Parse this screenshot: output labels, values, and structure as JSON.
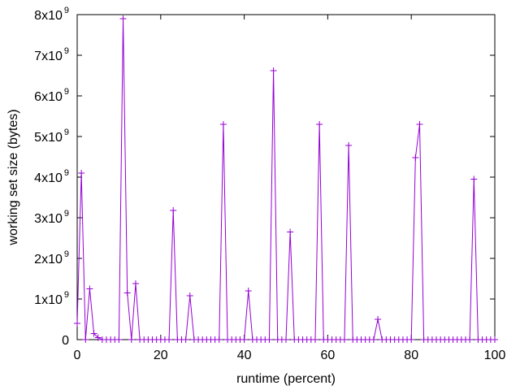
{
  "chart_data": {
    "type": "line",
    "title": "",
    "xlabel": "runtime (percent)",
    "ylabel": "working set size (bytes)",
    "xlim": [
      0,
      100
    ],
    "ylim": [
      0,
      8000000000
    ],
    "grid": false,
    "legend": "none",
    "line_color": "#9400d3",
    "marker": "+",
    "x_ticks": [
      0,
      20,
      40,
      60,
      80,
      100
    ],
    "x_tick_labels": [
      "0",
      "20",
      "40",
      "60",
      "80",
      "100"
    ],
    "y_ticks": [
      0,
      1000000000,
      2000000000,
      3000000000,
      4000000000,
      5000000000,
      6000000000,
      7000000000,
      8000000000
    ],
    "y_tick_labels": [
      {
        "mantissa": "0",
        "exponent": ""
      },
      {
        "mantissa": "1x10",
        "exponent": "9"
      },
      {
        "mantissa": "2x10",
        "exponent": "9"
      },
      {
        "mantissa": "3x10",
        "exponent": "9"
      },
      {
        "mantissa": "4x10",
        "exponent": "9"
      },
      {
        "mantissa": "5x10",
        "exponent": "9"
      },
      {
        "mantissa": "6x10",
        "exponent": "9"
      },
      {
        "mantissa": "7x10",
        "exponent": "9"
      },
      {
        "mantissa": "8x10",
        "exponent": "9"
      }
    ],
    "x": [
      0,
      1,
      2,
      3,
      4,
      5,
      6,
      7,
      8,
      9,
      10,
      11,
      12,
      13,
      14,
      15,
      16,
      17,
      18,
      19,
      20,
      21,
      22,
      23,
      24,
      25,
      26,
      27,
      28,
      29,
      30,
      31,
      32,
      33,
      34,
      35,
      36,
      37,
      38,
      39,
      40,
      41,
      42,
      43,
      44,
      45,
      46,
      47,
      48,
      49,
      50,
      51,
      52,
      53,
      54,
      55,
      56,
      57,
      58,
      59,
      60,
      61,
      62,
      63,
      64,
      65,
      66,
      67,
      68,
      69,
      70,
      71,
      72,
      73,
      74,
      75,
      76,
      77,
      78,
      79,
      80,
      81,
      82,
      83,
      84,
      85,
      86,
      87,
      88,
      89,
      90,
      91,
      92,
      93,
      94,
      95,
      96,
      97,
      98,
      99,
      100
    ],
    "values": [
      400000000,
      4100000000,
      0,
      1250000000,
      150000000,
      50000000,
      0,
      0,
      0,
      0,
      0,
      7900000000,
      1150000000,
      0,
      1380000000,
      0,
      0,
      0,
      0,
      0,
      0,
      0,
      0,
      3180000000,
      0,
      0,
      0,
      1080000000,
      0,
      0,
      0,
      0,
      0,
      0,
      0,
      5300000000,
      0,
      0,
      0,
      0,
      0,
      1200000000,
      0,
      0,
      0,
      0,
      0,
      6620000000,
      0,
      0,
      0,
      2650000000,
      0,
      0,
      0,
      0,
      0,
      0,
      5300000000,
      0,
      0,
      0,
      0,
      0,
      0,
      4780000000,
      0,
      0,
      0,
      0,
      0,
      0,
      500000000,
      0,
      0,
      0,
      0,
      0,
      0,
      0,
      0,
      4480000000,
      5300000000,
      0,
      0,
      0,
      0,
      0,
      0,
      0,
      0,
      0,
      0,
      0,
      0,
      3950000000,
      0,
      0,
      0,
      0,
      0
    ]
  }
}
